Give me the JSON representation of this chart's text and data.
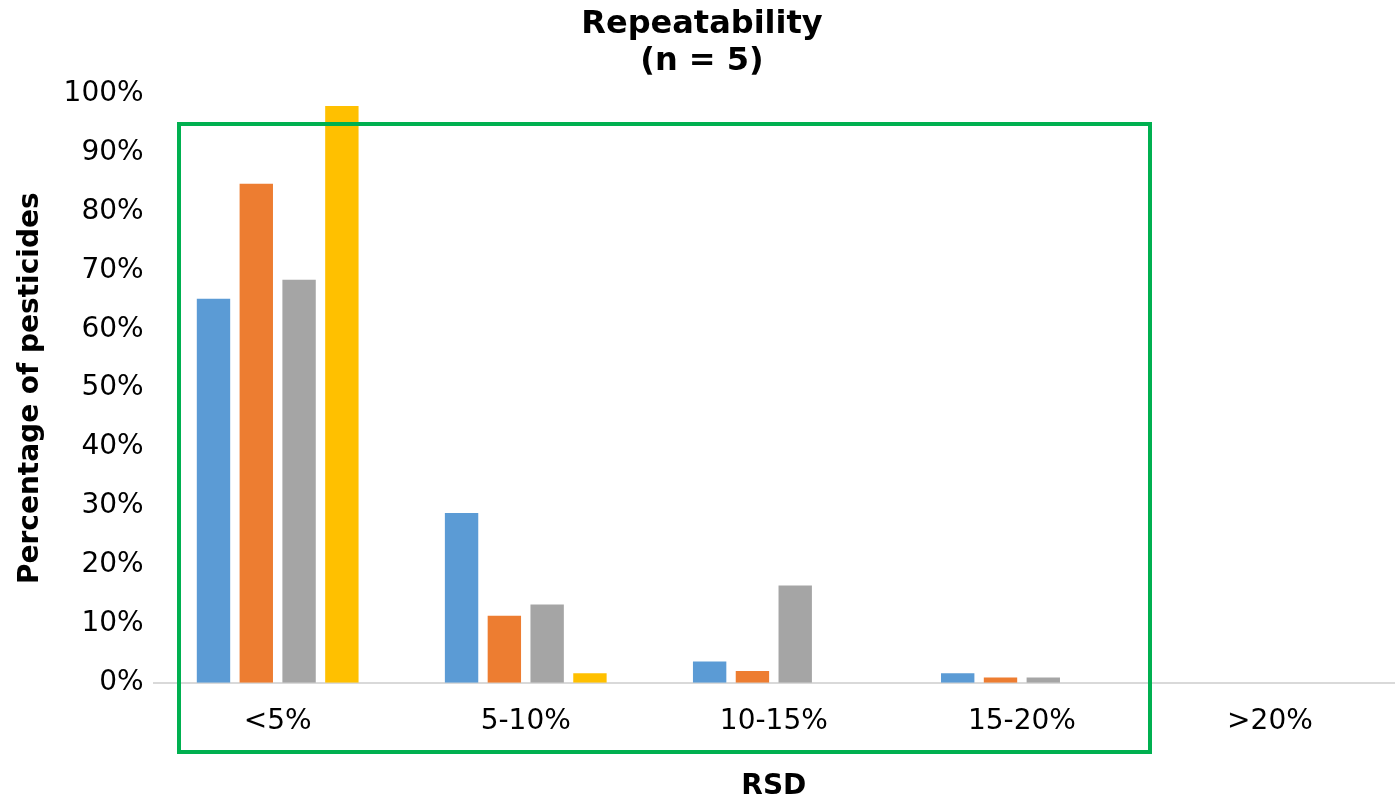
{
  "chart_data": {
    "type": "bar",
    "title": "Repeatability\n(n = 5)",
    "xlabel": "RSD",
    "ylabel": "Percentage of pesticides",
    "categories": [
      "<5%",
      "5-10%",
      "10-15%",
      "15-20%",
      ">20%"
    ],
    "series": [
      {
        "color": "#5b9bd5",
        "values": [
          65.2,
          28.8,
          3.6,
          1.6,
          0
        ]
      },
      {
        "color": "#ed7d31",
        "values": [
          84.7,
          11.4,
          2.0,
          0.9,
          0
        ]
      },
      {
        "color": "#a5a5a5",
        "values": [
          68.4,
          13.3,
          16.5,
          0.9,
          0
        ]
      },
      {
        "color": "#ffc000",
        "values": [
          97.9,
          1.6,
          0,
          0,
          0
        ]
      }
    ],
    "ylim": [
      0,
      100
    ],
    "yticks": [
      {
        "value": 0,
        "label": "0%"
      },
      {
        "value": 10,
        "label": "10%"
      },
      {
        "value": 20,
        "label": "20%"
      },
      {
        "value": 30,
        "label": "30%"
      },
      {
        "value": 40,
        "label": "40%"
      },
      {
        "value": 50,
        "label": "50%"
      },
      {
        "value": 60,
        "label": "60%"
      },
      {
        "value": 70,
        "label": "70%"
      },
      {
        "value": 80,
        "label": "80%"
      },
      {
        "value": 90,
        "label": "90%"
      },
      {
        "value": 100,
        "label": "100%"
      }
    ],
    "grid": false,
    "legend": false
  }
}
